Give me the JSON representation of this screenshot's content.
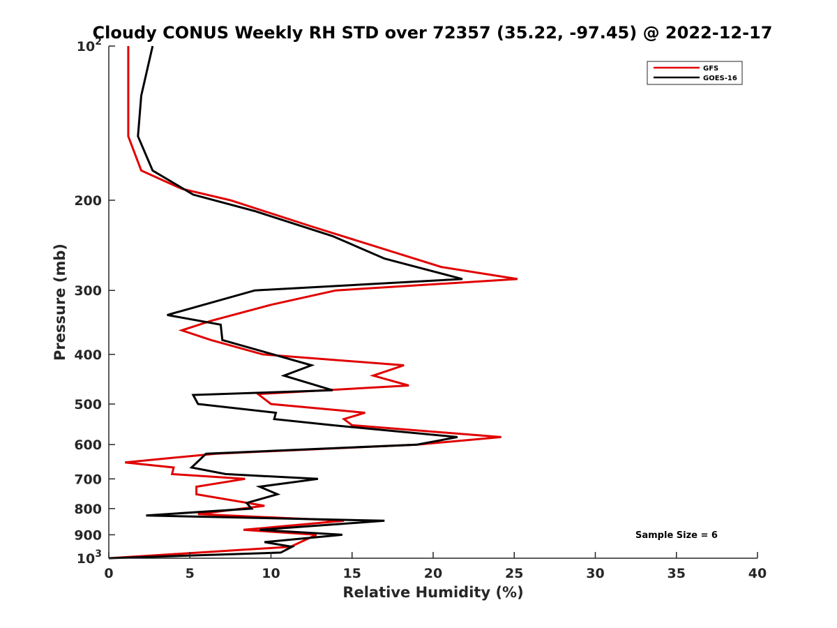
{
  "chart_data": {
    "type": "line",
    "title": "Cloudy CONUS Weekly RH STD over 72357 (35.22, -97.45) @ 2022-12-17",
    "xlabel": "Relative Humidity (%)",
    "ylabel": "Pressure (mb)",
    "xlim": [
      0,
      40
    ],
    "ylim": [
      100,
      1000
    ],
    "y_scale": "log",
    "y_reversed": true,
    "grid": false,
    "legend_position": "top-right",
    "x_ticks": [
      0,
      5,
      10,
      15,
      20,
      25,
      30,
      35,
      40
    ],
    "x_tick_labels": [
      "0",
      "5",
      "10",
      "15",
      "20",
      "25",
      "30",
      "35",
      "40"
    ],
    "y_ticks": [
      100,
      200,
      300,
      400,
      500,
      600,
      700,
      800,
      900,
      1000
    ],
    "y_tick_labels": [
      "10^2",
      "200",
      "300",
      "400",
      "500",
      "600",
      "700",
      "800",
      "900",
      "10^3"
    ],
    "annotation": "Sample Size = 6",
    "series": [
      {
        "name": "GFS",
        "color": "#e00000",
        "points": [
          [
            1.2,
            100
          ],
          [
            1.2,
            125
          ],
          [
            1.2,
            150
          ],
          [
            2.0,
            175
          ],
          [
            4.5,
            190
          ],
          [
            7.5,
            200
          ],
          [
            12.5,
            225
          ],
          [
            20.5,
            270
          ],
          [
            25.2,
            285
          ],
          [
            14,
            300
          ],
          [
            10,
            320
          ],
          [
            6.3,
            344
          ],
          [
            4.5,
            359
          ],
          [
            6.3,
            375
          ],
          [
            9.5,
            400
          ],
          [
            18.2,
            420
          ],
          [
            16.3,
            440
          ],
          [
            18.5,
            460
          ],
          [
            9.2,
            478
          ],
          [
            10,
            500
          ],
          [
            15.8,
            520
          ],
          [
            14.5,
            535
          ],
          [
            15,
            550
          ],
          [
            24.2,
            580
          ],
          [
            19,
            600
          ],
          [
            6.6,
            625
          ],
          [
            1.0,
            650
          ],
          [
            4.0,
            665
          ],
          [
            3.9,
            685
          ],
          [
            8.4,
            700
          ],
          [
            5.4,
            725
          ],
          [
            5.4,
            750
          ],
          [
            9.6,
            790
          ],
          [
            5.5,
            820
          ],
          [
            14.5,
            845
          ],
          [
            8.3,
            880
          ],
          [
            12.8,
            900
          ],
          [
            11.2,
            950
          ],
          [
            0,
            1000
          ]
        ]
      },
      {
        "name": "GOES-16",
        "color": "#000000",
        "points": [
          [
            2.7,
            100
          ],
          [
            2.0,
            125
          ],
          [
            1.8,
            150
          ],
          [
            2.7,
            175
          ],
          [
            5.2,
            195
          ],
          [
            9.0,
            210
          ],
          [
            13.8,
            235
          ],
          [
            17.0,
            260
          ],
          [
            21.8,
            285
          ],
          [
            9.0,
            300
          ],
          [
            3.6,
            335
          ],
          [
            6.9,
            350
          ],
          [
            7.0,
            375
          ],
          [
            12.5,
            420
          ],
          [
            10.8,
            440
          ],
          [
            13.8,
            470
          ],
          [
            5.2,
            480
          ],
          [
            5.5,
            500
          ],
          [
            10.3,
            520
          ],
          [
            10.2,
            535
          ],
          [
            13.8,
            550
          ],
          [
            21.5,
            580
          ],
          [
            19.0,
            600
          ],
          [
            6.0,
            625
          ],
          [
            5.1,
            665
          ],
          [
            7.2,
            685
          ],
          [
            12.9,
            700
          ],
          [
            9.3,
            725
          ],
          [
            10.4,
            750
          ],
          [
            8.5,
            780
          ],
          [
            8.8,
            800
          ],
          [
            2.3,
            825
          ],
          [
            17.0,
            845
          ],
          [
            9.3,
            880
          ],
          [
            14.4,
            900
          ],
          [
            9.6,
            930
          ],
          [
            11.3,
            950
          ],
          [
            10.6,
            975
          ],
          [
            0,
            1000
          ]
        ]
      }
    ]
  }
}
